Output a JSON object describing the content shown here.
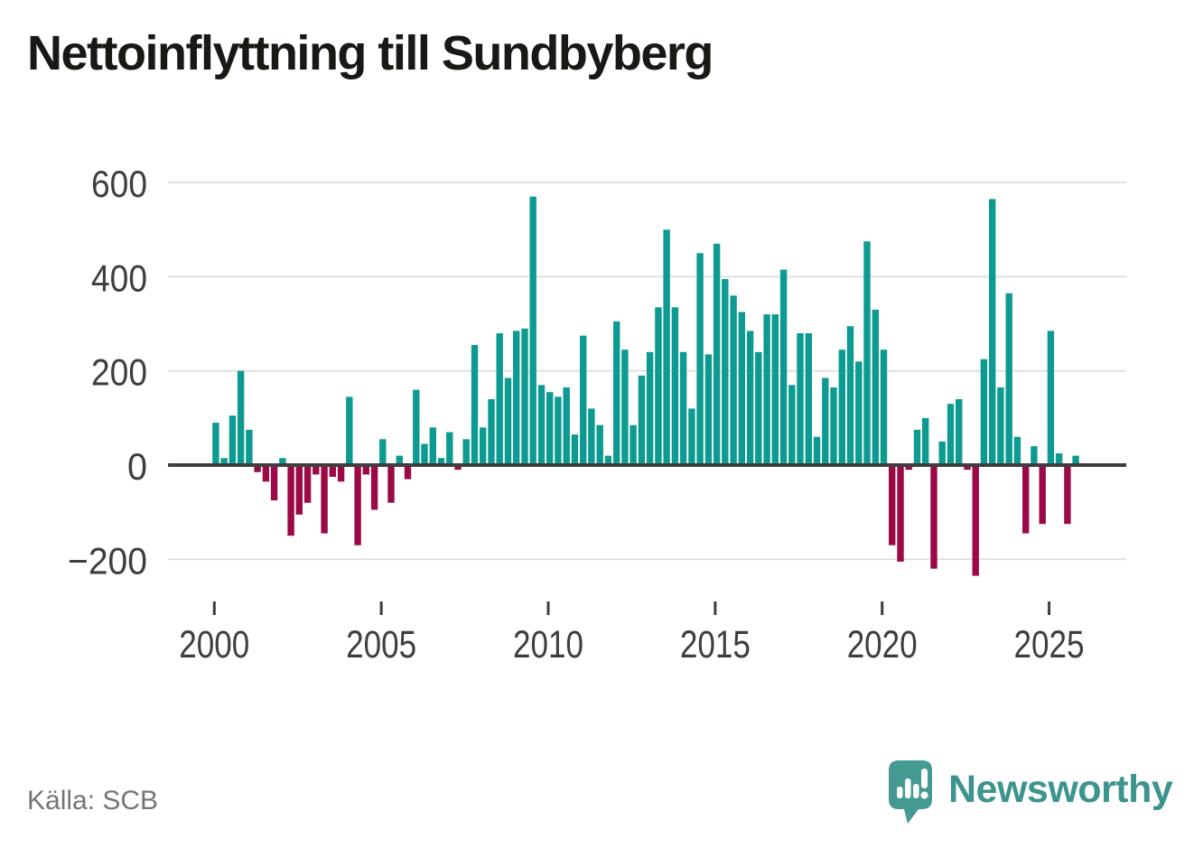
{
  "header": {
    "title": "Nettoinflyttning till Sundbyberg"
  },
  "footer": {
    "source": "Källa: SCB",
    "brand": "Newsworthy"
  },
  "colors": {
    "positive": "#0d9b91",
    "negative": "#9b0a46",
    "gridline": "#e1e1e1",
    "zero_line": "#3f3f3f",
    "axis_text": "#3e3e3e",
    "title_text": "#181815",
    "source_text": "#757575",
    "brand_teal": "#3d938d"
  },
  "chart_data": {
    "type": "bar",
    "title": "Nettoinflyttning till Sundbyberg",
    "frequency": "quarterly",
    "start_year": 2000,
    "start_quarter": 1,
    "end_year": 2025,
    "end_quarter": 4,
    "values": [
      90,
      15,
      105,
      200,
      75,
      -15,
      -35,
      -75,
      15,
      -150,
      -105,
      -80,
      -20,
      -145,
      -25,
      -35,
      145,
      -170,
      -20,
      -95,
      55,
      -80,
      20,
      -30,
      160,
      45,
      80,
      15,
      70,
      -10,
      55,
      255,
      80,
      140,
      280,
      185,
      285,
      290,
      570,
      170,
      155,
      145,
      165,
      65,
      275,
      120,
      85,
      20,
      305,
      245,
      85,
      190,
      240,
      335,
      500,
      335,
      240,
      120,
      450,
      235,
      470,
      395,
      360,
      325,
      285,
      240,
      320,
      320,
      415,
      170,
      280,
      280,
      60,
      185,
      165,
      245,
      295,
      220,
      475,
      330,
      245,
      -170,
      -205,
      -10,
      75,
      100,
      -220,
      50,
      130,
      140,
      -10,
      -235,
      225,
      565,
      165,
      365,
      60,
      -145,
      40,
      -125,
      285,
      25,
      -125,
      20
    ],
    "y_ticks": [
      600,
      400,
      200,
      0,
      -200
    ],
    "y_tick_labels": [
      "600",
      "400",
      "200",
      "0",
      "−200"
    ],
    "x_tick_years": [
      "2000",
      "2005",
      "2010",
      "2015",
      "2020",
      "2025"
    ],
    "ylim": [
      -265,
      620
    ],
    "grid": "horizontal",
    "legend": "none",
    "positive_color": "#0d9b91",
    "negative_color": "#9b0a46"
  }
}
